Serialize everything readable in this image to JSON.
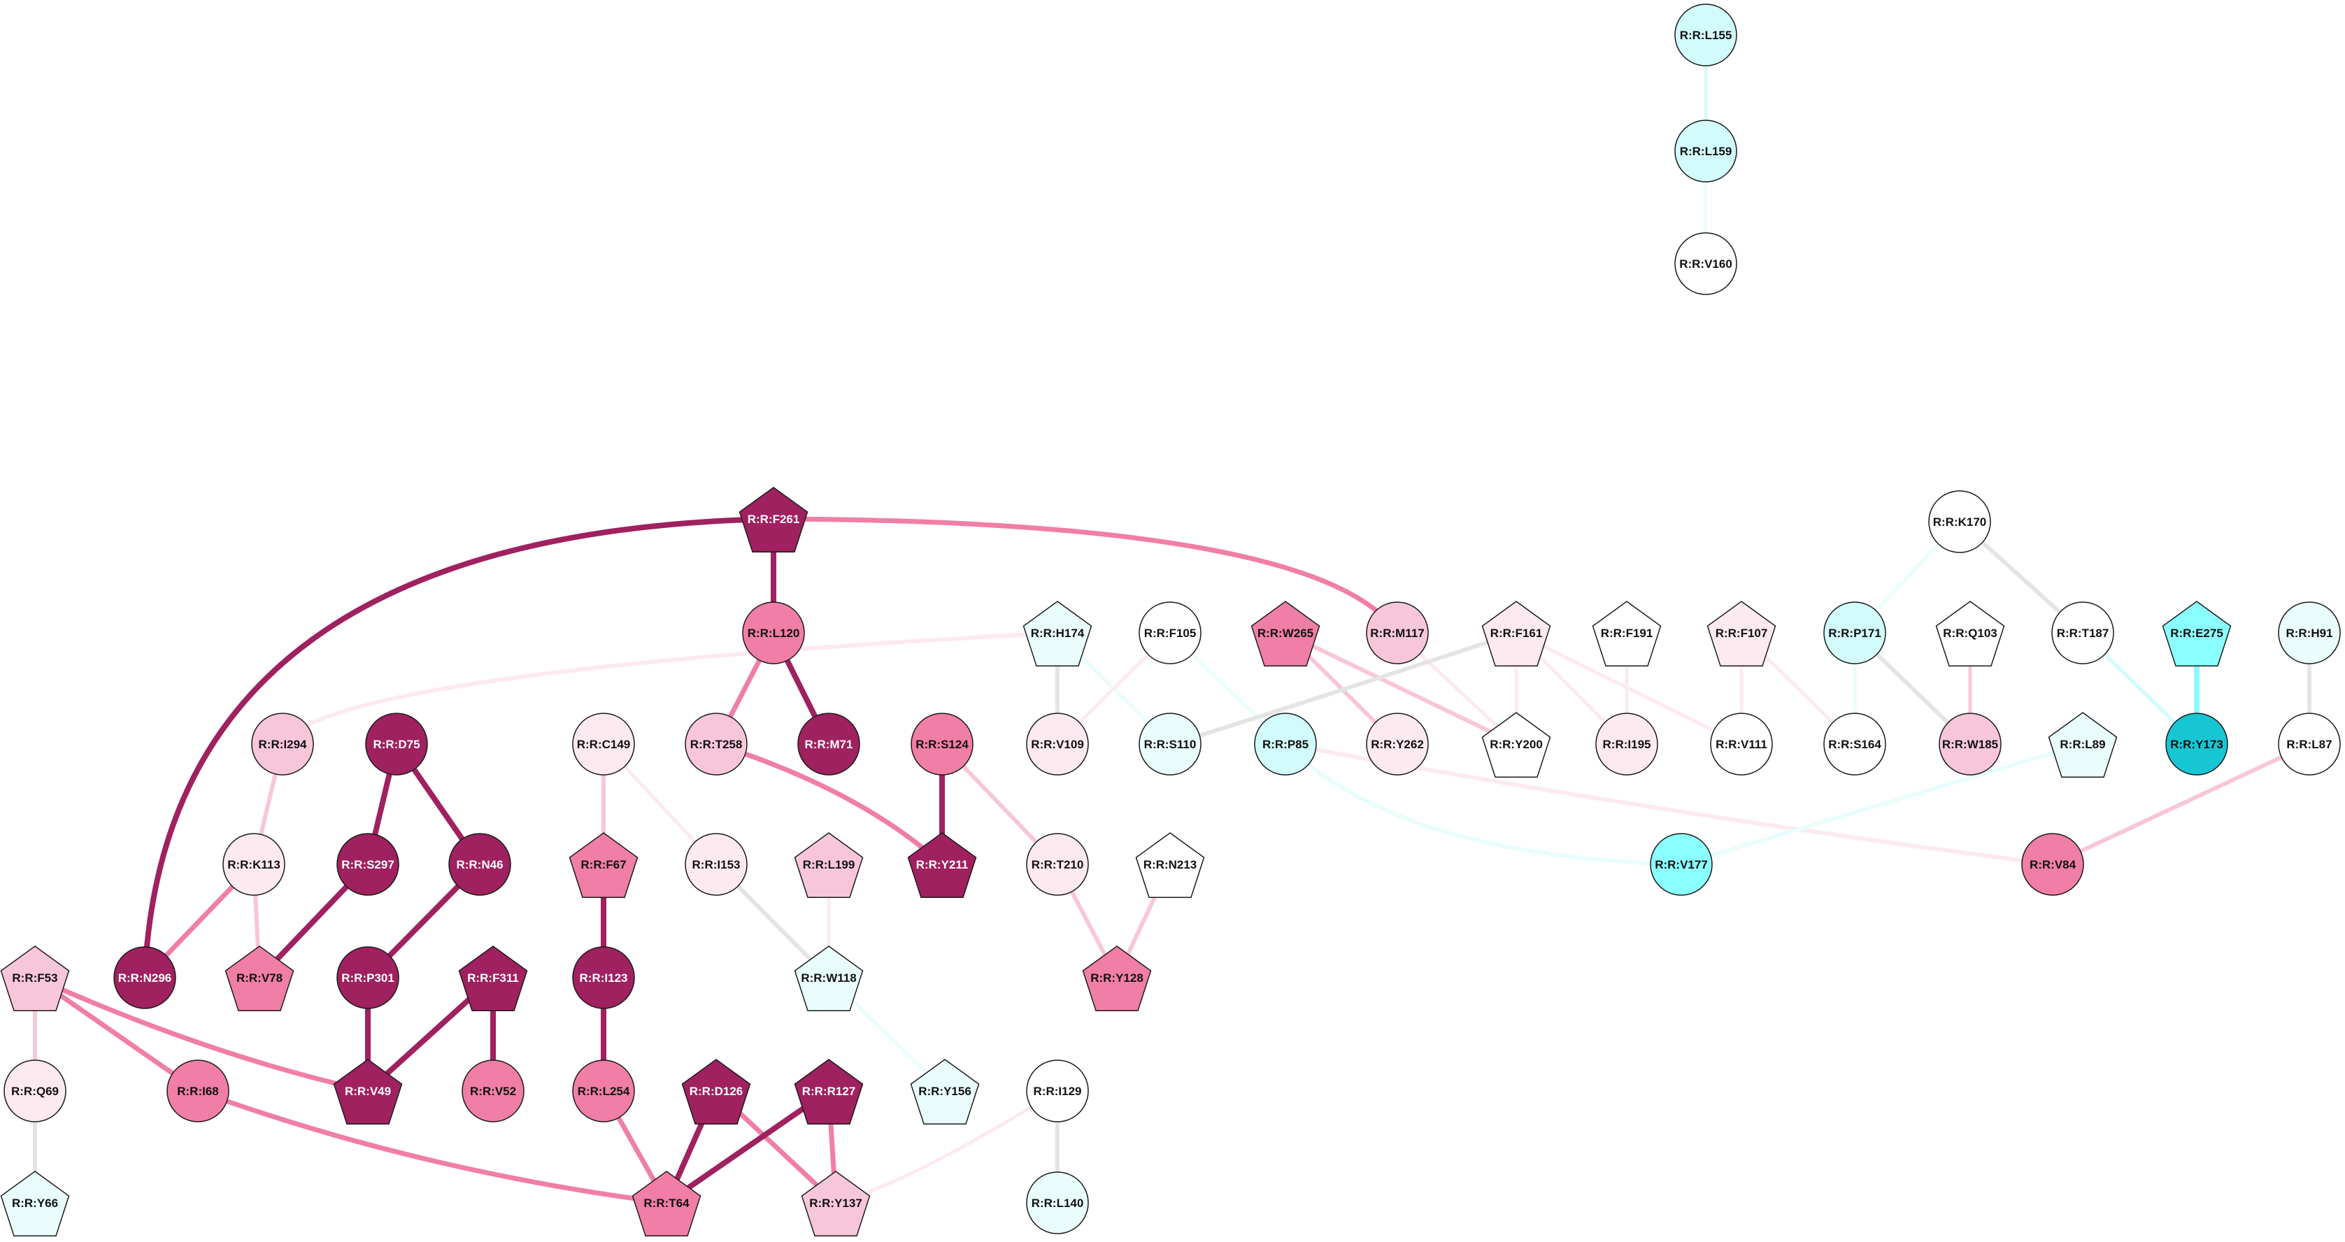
{
  "colors": {
    "deep_magenta": "#a0215f",
    "mid_pink": "#f07ea6",
    "light_pink": "#f8c6da",
    "pale_pink": "#fdeaf0",
    "white": "#ffffff",
    "pale_cyan": "#eafdfd",
    "light_cyan": "#d2fbfb",
    "mid_cyan": "#8affff",
    "deep_cyan": "#16c6d2",
    "gray_edge": "#e4e4e4",
    "outline": "#1a1a1a"
  },
  "nodes": [
    {
      "id": "L155",
      "label": "R:R:L155",
      "shape": "circle",
      "color": "light_cyan"
    },
    {
      "id": "L159",
      "label": "R:R:L159",
      "shape": "circle",
      "color": "light_cyan"
    },
    {
      "id": "V160",
      "label": "R:R:V160",
      "shape": "circle",
      "color": "white"
    },
    {
      "id": "F261",
      "label": "R:R:F261",
      "shape": "pentagon",
      "color": "deep_magenta"
    },
    {
      "id": "K170",
      "label": "R:R:K170",
      "shape": "circle",
      "color": "white"
    },
    {
      "id": "L120",
      "label": "R:R:L120",
      "shape": "circle",
      "color": "mid_pink"
    },
    {
      "id": "H174",
      "label": "R:R:H174",
      "shape": "pentagon",
      "color": "pale_cyan"
    },
    {
      "id": "F105",
      "label": "R:R:F105",
      "shape": "circle",
      "color": "white"
    },
    {
      "id": "W265",
      "label": "R:R:W265",
      "shape": "pentagon",
      "color": "mid_pink"
    },
    {
      "id": "M117",
      "label": "R:R:M117",
      "shape": "circle",
      "color": "light_pink"
    },
    {
      "id": "F161",
      "label": "R:R:F161",
      "shape": "pentagon",
      "color": "pale_pink"
    },
    {
      "id": "F191",
      "label": "R:R:F191",
      "shape": "pentagon",
      "color": "white"
    },
    {
      "id": "F107",
      "label": "R:R:F107",
      "shape": "pentagon",
      "color": "pale_pink"
    },
    {
      "id": "P171",
      "label": "R:R:P171",
      "shape": "circle",
      "color": "light_cyan"
    },
    {
      "id": "Q103",
      "label": "R:R:Q103",
      "shape": "pentagon",
      "color": "white"
    },
    {
      "id": "T187",
      "label": "R:R:T187",
      "shape": "circle",
      "color": "white"
    },
    {
      "id": "E275",
      "label": "R:R:E275",
      "shape": "pentagon",
      "color": "mid_cyan"
    },
    {
      "id": "H91",
      "label": "R:R:H91",
      "shape": "circle",
      "color": "pale_cyan"
    },
    {
      "id": "I294",
      "label": "R:R:I294",
      "shape": "circle",
      "color": "light_pink"
    },
    {
      "id": "D75",
      "label": "R:R:D75",
      "shape": "circle",
      "color": "deep_magenta"
    },
    {
      "id": "C149",
      "label": "R:R:C149",
      "shape": "circle",
      "color": "pale_pink"
    },
    {
      "id": "T258",
      "label": "R:R:T258",
      "shape": "circle",
      "color": "light_pink"
    },
    {
      "id": "M71",
      "label": "R:R:M71",
      "shape": "circle",
      "color": "deep_magenta"
    },
    {
      "id": "S124",
      "label": "R:R:S124",
      "shape": "circle",
      "color": "mid_pink"
    },
    {
      "id": "V109",
      "label": "R:R:V109",
      "shape": "circle",
      "color": "pale_pink"
    },
    {
      "id": "S110",
      "label": "R:R:S110",
      "shape": "circle",
      "color": "pale_cyan"
    },
    {
      "id": "P85",
      "label": "R:R:P85",
      "shape": "circle",
      "color": "light_cyan"
    },
    {
      "id": "Y262",
      "label": "R:R:Y262",
      "shape": "circle",
      "color": "pale_pink"
    },
    {
      "id": "Y200",
      "label": "R:R:Y200",
      "shape": "pentagon",
      "color": "white"
    },
    {
      "id": "I195",
      "label": "R:R:I195",
      "shape": "circle",
      "color": "pale_pink"
    },
    {
      "id": "V111",
      "label": "R:R:V111",
      "shape": "circle",
      "color": "white"
    },
    {
      "id": "S164",
      "label": "R:R:S164",
      "shape": "circle",
      "color": "white"
    },
    {
      "id": "W185",
      "label": "R:R:W185",
      "shape": "circle",
      "color": "light_pink"
    },
    {
      "id": "L89",
      "label": "R:R:L89",
      "shape": "pentagon",
      "color": "pale_cyan"
    },
    {
      "id": "Y173",
      "label": "R:R:Y173",
      "shape": "circle",
      "color": "deep_cyan"
    },
    {
      "id": "L87",
      "label": "R:R:L87",
      "shape": "circle",
      "color": "white"
    },
    {
      "id": "K113",
      "label": "R:R:K113",
      "shape": "circle",
      "color": "pale_pink"
    },
    {
      "id": "S297",
      "label": "R:R:S297",
      "shape": "circle",
      "color": "deep_magenta"
    },
    {
      "id": "N46",
      "label": "R:R:N46",
      "shape": "circle",
      "color": "deep_magenta"
    },
    {
      "id": "F67",
      "label": "R:R:F67",
      "shape": "pentagon",
      "color": "mid_pink"
    },
    {
      "id": "I153",
      "label": "R:R:I153",
      "shape": "circle",
      "color": "pale_pink"
    },
    {
      "id": "L199",
      "label": "R:R:L199",
      "shape": "pentagon",
      "color": "light_pink"
    },
    {
      "id": "Y211",
      "label": "R:R:Y211",
      "shape": "pentagon",
      "color": "deep_magenta"
    },
    {
      "id": "T210",
      "label": "R:R:T210",
      "shape": "circle",
      "color": "pale_pink"
    },
    {
      "id": "N213",
      "label": "R:R:N213",
      "shape": "pentagon",
      "color": "white"
    },
    {
      "id": "V177",
      "label": "R:R:V177",
      "shape": "circle",
      "color": "mid_cyan"
    },
    {
      "id": "V84",
      "label": "R:R:V84",
      "shape": "circle",
      "color": "mid_pink"
    },
    {
      "id": "F53",
      "label": "R:R:F53",
      "shape": "pentagon",
      "color": "light_pink"
    },
    {
      "id": "N296",
      "label": "R:R:N296",
      "shape": "circle",
      "color": "deep_magenta"
    },
    {
      "id": "V78",
      "label": "R:R:V78",
      "shape": "pentagon",
      "color": "mid_pink"
    },
    {
      "id": "P301",
      "label": "R:R:P301",
      "shape": "circle",
      "color": "deep_magenta"
    },
    {
      "id": "F311",
      "label": "R:R:F311",
      "shape": "pentagon",
      "color": "deep_magenta"
    },
    {
      "id": "I123",
      "label": "R:R:I123",
      "shape": "circle",
      "color": "deep_magenta"
    },
    {
      "id": "W118",
      "label": "R:R:W118",
      "shape": "pentagon",
      "color": "pale_cyan"
    },
    {
      "id": "Y128",
      "label": "R:R:Y128",
      "shape": "pentagon",
      "color": "mid_pink"
    },
    {
      "id": "Q69",
      "label": "R:R:Q69",
      "shape": "circle",
      "color": "pale_pink"
    },
    {
      "id": "I68",
      "label": "R:R:I68",
      "shape": "circle",
      "color": "mid_pink"
    },
    {
      "id": "V49",
      "label": "R:R:V49",
      "shape": "pentagon",
      "color": "deep_magenta"
    },
    {
      "id": "V52",
      "label": "R:R:V52",
      "shape": "circle",
      "color": "mid_pink"
    },
    {
      "id": "L254",
      "label": "R:R:L254",
      "shape": "circle",
      "color": "mid_pink"
    },
    {
      "id": "D126",
      "label": "R:R:D126",
      "shape": "pentagon",
      "color": "deep_magenta"
    },
    {
      "id": "R127",
      "label": "R:R:R127",
      "shape": "pentagon",
      "color": "deep_magenta"
    },
    {
      "id": "Y156",
      "label": "R:R:Y156",
      "shape": "pentagon",
      "color": "pale_cyan"
    },
    {
      "id": "I129",
      "label": "R:R:I129",
      "shape": "circle",
      "color": "white"
    },
    {
      "id": "Y66",
      "label": "R:R:Y66",
      "shape": "pentagon",
      "color": "pale_cyan"
    },
    {
      "id": "T64",
      "label": "R:R:T64",
      "shape": "pentagon",
      "color": "mid_pink"
    },
    {
      "id": "Y137",
      "label": "R:R:Y137",
      "shape": "pentagon",
      "color": "light_pink"
    },
    {
      "id": "L140",
      "label": "R:R:L140",
      "shape": "circle",
      "color": "pale_cyan"
    }
  ],
  "edges": [
    {
      "source": "L155",
      "target": "L159",
      "color": "light_cyan",
      "weight": 4
    },
    {
      "source": "L159",
      "target": "V160",
      "color": "pale_cyan",
      "weight": 4
    },
    {
      "source": "F261",
      "target": "N296",
      "color": "deep_magenta",
      "weight": 8
    },
    {
      "source": "F261",
      "target": "L120",
      "color": "deep_magenta",
      "weight": 8
    },
    {
      "source": "F261",
      "target": "M117",
      "color": "mid_pink",
      "weight": 7
    },
    {
      "source": "L120",
      "target": "T258",
      "color": "mid_pink",
      "weight": 7
    },
    {
      "source": "L120",
      "target": "M71",
      "color": "deep_magenta",
      "weight": 8
    },
    {
      "source": "T258",
      "target": "Y211",
      "color": "mid_pink",
      "weight": 7
    },
    {
      "source": "S124",
      "target": "Y211",
      "color": "deep_magenta",
      "weight": 8
    },
    {
      "source": "S124",
      "target": "T210",
      "color": "light_pink",
      "weight": 6
    },
    {
      "source": "T210",
      "target": "Y128",
      "color": "light_pink",
      "weight": 6
    },
    {
      "source": "N213",
      "target": "Y128",
      "color": "light_pink",
      "weight": 6
    },
    {
      "source": "H174",
      "target": "I294",
      "color": "pale_pink",
      "weight": 6
    },
    {
      "source": "H174",
      "target": "V109",
      "color": "gray_edge",
      "weight": 6
    },
    {
      "source": "H174",
      "target": "S110",
      "color": "pale_cyan",
      "weight": 5
    },
    {
      "source": "F105",
      "target": "V109",
      "color": "pale_pink",
      "weight": 5
    },
    {
      "source": "F105",
      "target": "P85",
      "color": "pale_cyan",
      "weight": 5
    },
    {
      "source": "W265",
      "target": "Y262",
      "color": "light_pink",
      "weight": 6
    },
    {
      "source": "W265",
      "target": "Y200",
      "color": "light_pink",
      "weight": 6
    },
    {
      "source": "M117",
      "target": "Y200",
      "color": "pale_pink",
      "weight": 5
    },
    {
      "source": "F161",
      "target": "S110",
      "color": "gray_edge",
      "weight": 6
    },
    {
      "source": "F161",
      "target": "Y200",
      "color": "pale_pink",
      "weight": 5
    },
    {
      "source": "F161",
      "target": "I195",
      "color": "pale_pink",
      "weight": 5
    },
    {
      "source": "F161",
      "target": "V111",
      "color": "pale_pink",
      "weight": 5
    },
    {
      "source": "F191",
      "target": "I195",
      "color": "pale_pink",
      "weight": 5
    },
    {
      "source": "F107",
      "target": "V111",
      "color": "pale_pink",
      "weight": 5
    },
    {
      "source": "F107",
      "target": "S164",
      "color": "pale_pink",
      "weight": 5
    },
    {
      "source": "K170",
      "target": "P171",
      "color": "pale_cyan",
      "weight": 5
    },
    {
      "source": "K170",
      "target": "T187",
      "color": "gray_edge",
      "weight": 6
    },
    {
      "source": "P171",
      "target": "S164",
      "color": "pale_cyan",
      "weight": 5
    },
    {
      "source": "P171",
      "target": "W185",
      "color": "gray_edge",
      "weight": 6
    },
    {
      "source": "Q103",
      "target": "W185",
      "color": "light_pink",
      "weight": 5
    },
    {
      "source": "T187",
      "target": "Y173",
      "color": "light_cyan",
      "weight": 5
    },
    {
      "source": "E275",
      "target": "Y173",
      "color": "mid_cyan",
      "weight": 8
    },
    {
      "source": "H91",
      "target": "L87",
      "color": "gray_edge",
      "weight": 6
    },
    {
      "source": "L87",
      "target": "V84",
      "color": "light_pink",
      "weight": 6
    },
    {
      "source": "P85",
      "target": "V84",
      "color": "pale_pink",
      "weight": 6
    },
    {
      "source": "P85",
      "target": "V177",
      "color": "pale_cyan",
      "weight": 6
    },
    {
      "source": "L89",
      "target": "V177",
      "color": "pale_cyan",
      "weight": 6
    },
    {
      "source": "I294",
      "target": "K113",
      "color": "light_pink",
      "weight": 6
    },
    {
      "source": "K113",
      "target": "N296",
      "color": "mid_pink",
      "weight": 7
    },
    {
      "source": "K113",
      "target": "V78",
      "color": "light_pink",
      "weight": 6
    },
    {
      "source": "D75",
      "target": "S297",
      "color": "deep_magenta",
      "weight": 8
    },
    {
      "source": "D75",
      "target": "N46",
      "color": "deep_magenta",
      "weight": 8
    },
    {
      "source": "S297",
      "target": "V78",
      "color": "deep_magenta",
      "weight": 8
    },
    {
      "source": "N46",
      "target": "P301",
      "color": "deep_magenta",
      "weight": 8
    },
    {
      "source": "P301",
      "target": "V49",
      "color": "deep_magenta",
      "weight": 8
    },
    {
      "source": "F311",
      "target": "V49",
      "color": "deep_magenta",
      "weight": 8
    },
    {
      "source": "F311",
      "target": "V52",
      "color": "deep_magenta",
      "weight": 8
    },
    {
      "source": "C149",
      "target": "F67",
      "color": "light_pink",
      "weight": 6
    },
    {
      "source": "C149",
      "target": "I153",
      "color": "pale_pink",
      "weight": 5
    },
    {
      "source": "F67",
      "target": "I123",
      "color": "deep_magenta",
      "weight": 8
    },
    {
      "source": "I123",
      "target": "L254",
      "color": "deep_magenta",
      "weight": 8
    },
    {
      "source": "L254",
      "target": "T64",
      "color": "mid_pink",
      "weight": 7
    },
    {
      "source": "I153",
      "target": "W118",
      "color": "gray_edge",
      "weight": 6
    },
    {
      "source": "L199",
      "target": "W118",
      "color": "pale_pink",
      "weight": 5
    },
    {
      "source": "W118",
      "target": "Y156",
      "color": "pale_cyan",
      "weight": 5
    },
    {
      "source": "F53",
      "target": "Q69",
      "color": "light_pink",
      "weight": 6
    },
    {
      "source": "F53",
      "target": "I68",
      "color": "mid_pink",
      "weight": 7
    },
    {
      "source": "F53",
      "target": "V49",
      "color": "mid_pink",
      "weight": 7
    },
    {
      "source": "Q69",
      "target": "Y66",
      "color": "gray_edge",
      "weight": 6
    },
    {
      "source": "I68",
      "target": "T64",
      "color": "mid_pink",
      "weight": 7
    },
    {
      "source": "D126",
      "target": "T64",
      "color": "deep_magenta",
      "weight": 8
    },
    {
      "source": "D126",
      "target": "Y137",
      "color": "mid_pink",
      "weight": 7
    },
    {
      "source": "R127",
      "target": "T64",
      "color": "deep_magenta",
      "weight": 8
    },
    {
      "source": "R127",
      "target": "Y137",
      "color": "mid_pink",
      "weight": 7
    },
    {
      "source": "I129",
      "target": "Y137",
      "color": "pale_pink",
      "weight": 5
    },
    {
      "source": "I129",
      "target": "L140",
      "color": "gray_edge",
      "weight": 6
    }
  ]
}
